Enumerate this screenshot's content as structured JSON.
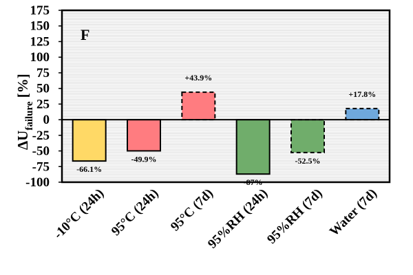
{
  "chart_data": {
    "type": "bar",
    "panel_label": "F",
    "ylabel": {
      "main": "ΔU",
      "sub": "failure",
      "unit": " [%]"
    },
    "xlabel": "",
    "ylim": [
      -100,
      175
    ],
    "yticks": [
      -100,
      -75,
      -50,
      -25,
      0,
      25,
      50,
      75,
      100,
      125,
      150,
      175
    ],
    "grid": "horizontal dense light gray",
    "categories": [
      "-10°C (24h)",
      "95°C (24h)",
      "95°C (7d)",
      "95%RH (24h)",
      "95%RH (7d)",
      "Water (7d)"
    ],
    "values": [
      -66.1,
      -49.9,
      43.9,
      -87,
      -52.5,
      17.8
    ],
    "data_labels": [
      "-66.1%",
      "-49.9%",
      "+43.9%",
      "-87%",
      "-52.5%",
      "+17.8%"
    ],
    "colors": [
      "#FFD966",
      "#FF7C80",
      "#FF7C80",
      "#70AD6B",
      "#70AD6B",
      "#6FA8DC"
    ],
    "border_styles": [
      "solid",
      "solid",
      "dashed",
      "solid",
      "dashed",
      "dashed"
    ]
  }
}
